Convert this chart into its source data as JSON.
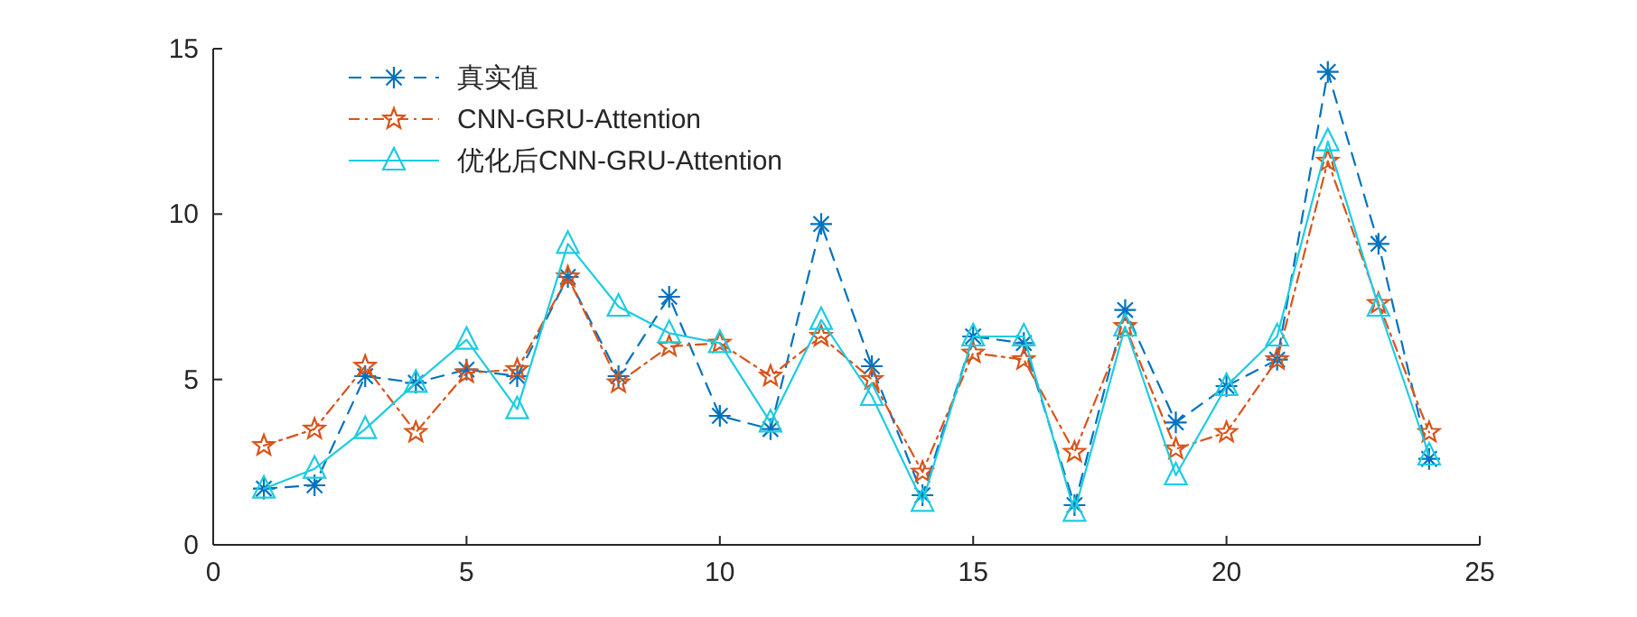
{
  "chart_data": {
    "type": "line",
    "x": [
      1,
      2,
      3,
      4,
      5,
      6,
      7,
      8,
      9,
      10,
      11,
      12,
      13,
      14,
      15,
      16,
      17,
      18,
      19,
      20,
      21,
      22,
      23,
      24
    ],
    "series": [
      {
        "name": "真实值",
        "color": "#0072bd",
        "marker": "cross",
        "line_style": "dashed",
        "values": [
          1.7,
          1.8,
          5.1,
          4.9,
          5.3,
          5.1,
          8.1,
          5.1,
          7.5,
          3.9,
          3.5,
          9.7,
          5.4,
          1.5,
          6.3,
          6.1,
          1.2,
          7.1,
          3.7,
          4.8,
          5.6,
          14.3,
          9.1,
          2.6
        ]
      },
      {
        "name": "CNN-GRU-Attention",
        "color": "#d95319",
        "marker": "star",
        "line_style": "dotted",
        "values": [
          3.0,
          3.5,
          5.4,
          3.4,
          5.2,
          5.3,
          8.1,
          4.9,
          6.0,
          6.1,
          5.1,
          6.3,
          5.0,
          2.2,
          5.8,
          5.6,
          2.8,
          6.6,
          2.9,
          3.4,
          5.6,
          11.6,
          7.3,
          3.4
        ]
      },
      {
        "name": "优化后CNN-GRU-Attention",
        "color": "#1ecbe1",
        "marker": "triangle",
        "line_style": "solid",
        "values": [
          1.7,
          2.3,
          3.5,
          4.9,
          6.2,
          4.1,
          9.1,
          7.2,
          6.4,
          6.1,
          3.7,
          6.8,
          4.5,
          1.3,
          6.3,
          6.3,
          1.0,
          6.6,
          2.1,
          4.8,
          6.3,
          12.2,
          7.2,
          2.7
        ]
      }
    ],
    "xlim": [
      0,
      25
    ],
    "xticks": [
      0,
      5,
      10,
      15,
      20,
      25
    ],
    "ylim": [
      0,
      15
    ],
    "yticks": [
      0,
      5,
      10,
      15
    ],
    "grid": false,
    "legend": "top left"
  }
}
